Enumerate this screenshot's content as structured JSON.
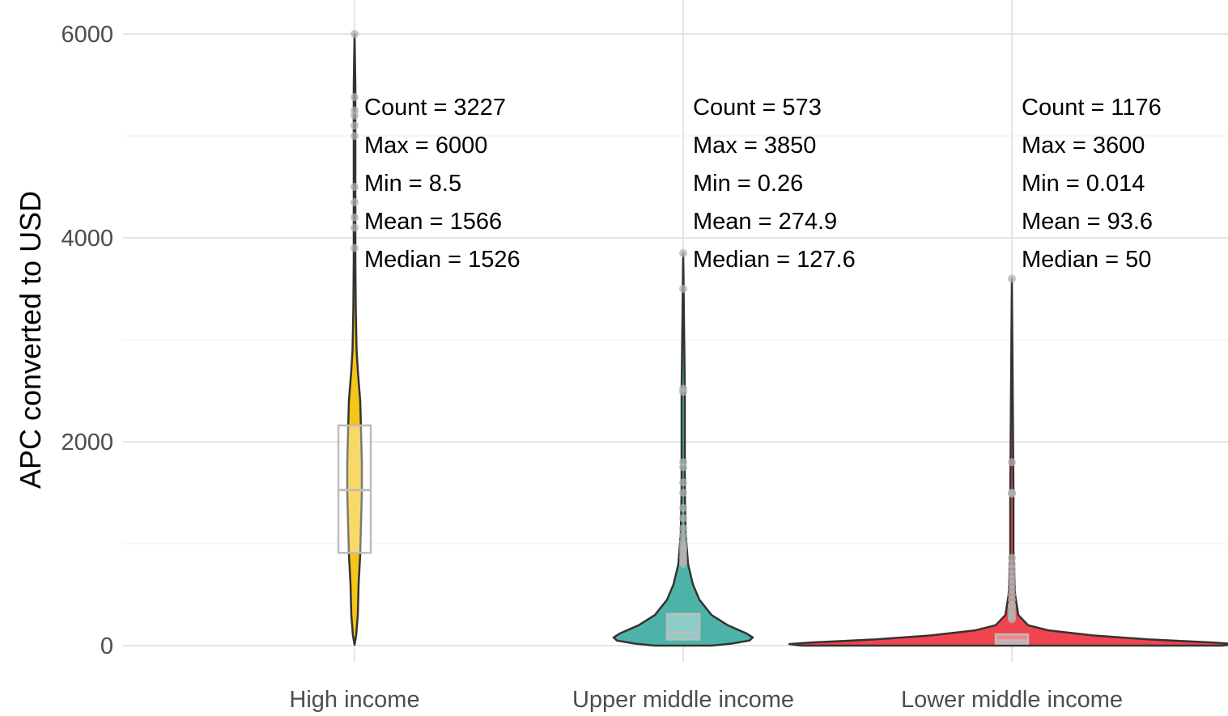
{
  "chart_data": {
    "type": "violin",
    "title": "",
    "xlabel": "",
    "ylabel": "APC converted to USD",
    "ylim": [
      0,
      6000
    ],
    "y_ticks": [
      0,
      2000,
      4000,
      6000
    ],
    "y_tick_labels": [
      "0",
      "2000",
      "4000",
      "6000"
    ],
    "grid": true,
    "legend": "none",
    "categories": [
      "High income",
      "Upper middle income",
      "Lower middle income"
    ],
    "series": [
      {
        "category": "High income",
        "color": "#f5c518",
        "count": 3227,
        "max": 6000,
        "min": 8.5,
        "mean": 1566,
        "median": 1526,
        "q1": 910,
        "q3": 2160,
        "labels": [
          "Count = 3227",
          "Max = 6000",
          "Min = 8.5",
          "Mean = 1566",
          "Median = 1526"
        ],
        "outliers": [
          6000,
          5380,
          5250,
          5200,
          5100,
          5000,
          4500,
          4350,
          4200,
          4100,
          3900
        ]
      },
      {
        "category": "Upper middle income",
        "color": "#4db3a8",
        "count": 573,
        "max": 3850,
        "min": 0.26,
        "mean": 274.9,
        "median": 127.6,
        "q1": 60,
        "q3": 310,
        "labels": [
          "Count = 573",
          "Max = 3850",
          "Min = 0.26",
          "Mean = 274.9",
          "Median = 127.6"
        ],
        "outliers": [
          3850,
          3500,
          2520,
          2490,
          1800,
          1750,
          1600,
          1500,
          1350,
          1250,
          1150,
          1080,
          1020,
          980,
          950,
          920,
          880,
          850,
          820,
          800
        ]
      },
      {
        "category": "Lower middle income",
        "color": "#f0444e",
        "count": 1176,
        "max": 3600,
        "min": 0.014,
        "mean": 93.6,
        "median": 50,
        "q1": 20,
        "q3": 110,
        "labels": [
          "Count = 1176",
          "Max = 3600",
          "Min = 0.014",
          "Mean = 93.6",
          "Median = 50"
        ],
        "outliers": [
          3600,
          1800,
          1500,
          1490,
          860,
          800,
          750,
          700,
          650,
          600,
          550,
          500,
          450,
          400,
          380,
          350,
          320,
          300,
          280,
          260
        ]
      }
    ]
  }
}
